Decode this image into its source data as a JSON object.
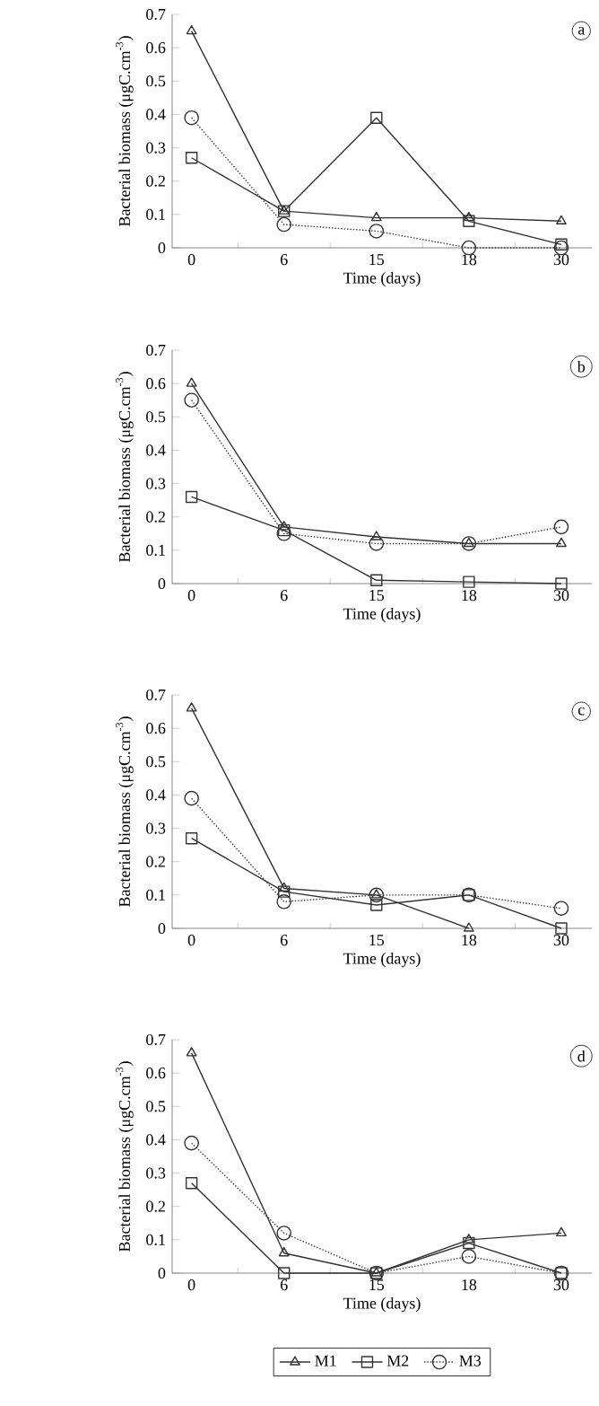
{
  "chart_data": [
    {
      "type": "line",
      "categories": [
        "0",
        "6",
        "15",
        "18",
        "30"
      ],
      "xlabel": "Time (days)",
      "ylabel": "Bacterial biomass (μgC.cm$^{-3}$)",
      "ylim": [
        0,
        0.7
      ],
      "yticks": [
        0,
        0.1,
        0.2,
        0.3,
        0.4,
        0.5,
        0.6,
        0.7
      ],
      "annotations": [
        "a"
      ],
      "legend": false,
      "series": [
        {
          "color": "#333333",
          "marker": "triangle",
          "line_style": "solid",
          "values": [
            0.65,
            0.11,
            0.09,
            0.09,
            0.08
          ]
        },
        {
          "color": "#333333",
          "marker": "square",
          "line_style": "solid",
          "values": [
            0.27,
            0.11,
            0.39,
            0.08,
            0.01
          ]
        },
        {
          "color": "#333333",
          "marker": "circle",
          "line_style": "dotted",
          "values": [
            0.39,
            0.07,
            0.05,
            0.0,
            0.0
          ]
        }
      ]
    },
    {
      "type": "line",
      "categories": [
        "0",
        "6",
        "15",
        "18",
        "30"
      ],
      "xlabel": "Time (days)",
      "ylabel": "Bacterial biomass (μgC.cm$^{-3}$)",
      "ylim": [
        0,
        0.7
      ],
      "yticks": [
        0,
        0.1,
        0.2,
        0.3,
        0.4,
        0.5,
        0.6,
        0.7
      ],
      "annotations": [
        "b"
      ],
      "legend": false,
      "series": [
        {
          "color": "#333333",
          "marker": "triangle",
          "line_style": "solid",
          "values": [
            0.6,
            0.17,
            0.14,
            0.12,
            0.12
          ]
        },
        {
          "color": "#333333",
          "marker": "square",
          "line_style": "solid",
          "values": [
            0.26,
            0.16,
            0.01,
            0.005,
            0.0
          ]
        },
        {
          "color": "#333333",
          "marker": "circle",
          "line_style": "dotted",
          "values": [
            0.55,
            0.15,
            0.12,
            0.12,
            0.17
          ]
        }
      ]
    },
    {
      "type": "line",
      "categories": [
        "0",
        "6",
        "15",
        "18",
        "30"
      ],
      "xlabel": "Time (days)",
      "ylabel": "Bacterial biomass (μgC.cm$^{-3}$)",
      "ylim": [
        0,
        0.7
      ],
      "yticks": [
        0,
        0.1,
        0.2,
        0.3,
        0.4,
        0.5,
        0.6,
        0.7
      ],
      "annotations": [
        "c"
      ],
      "legend": false,
      "series": [
        {
          "color": "#333333",
          "marker": "triangle",
          "line_style": "solid",
          "values": [
            0.66,
            0.12,
            0.1,
            0.0,
            null
          ]
        },
        {
          "color": "#333333",
          "marker": "square",
          "line_style": "solid",
          "values": [
            0.27,
            0.11,
            0.07,
            0.1,
            0.0
          ]
        },
        {
          "color": "#333333",
          "marker": "circle",
          "line_style": "dotted",
          "values": [
            0.39,
            0.08,
            0.1,
            0.1,
            0.06
          ]
        }
      ]
    },
    {
      "type": "line",
      "categories": [
        "0",
        "6",
        "15",
        "18",
        "30"
      ],
      "xlabel": "Time (days)",
      "ylabel": "Bacterial biomass (μgC.cm$^{-3}$)",
      "ylim": [
        0,
        0.7
      ],
      "yticks": [
        0,
        0.1,
        0.2,
        0.3,
        0.4,
        0.5,
        0.6,
        0.7
      ],
      "annotations": [
        "d"
      ],
      "legend": "bottom",
      "series": [
        {
          "name": "M1",
          "color": "#333333",
          "marker": "triangle",
          "line_style": "solid",
          "values": [
            0.66,
            0.06,
            0.0,
            0.1,
            0.12
          ]
        },
        {
          "name": "M2",
          "color": "#333333",
          "marker": "square",
          "line_style": "solid",
          "values": [
            0.27,
            0.0,
            0.0,
            0.09,
            0.0
          ]
        },
        {
          "name": "M3",
          "color": "#333333",
          "marker": "circle",
          "line_style": "dotted",
          "values": [
            0.39,
            0.12,
            0.0,
            0.05,
            0.0
          ]
        }
      ]
    }
  ]
}
